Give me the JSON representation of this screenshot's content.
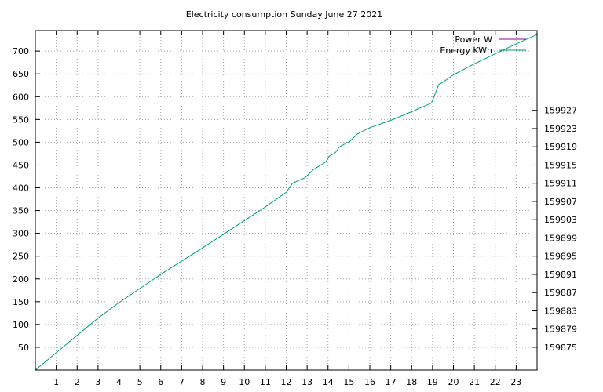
{
  "chart_data": {
    "type": "line",
    "title": "Electricity consumption Sunday June 27 2021",
    "xlabel": "",
    "ylabel": "",
    "x_ticks": [
      "1",
      "2",
      "3",
      "4",
      "5",
      "6",
      "7",
      "8",
      "9",
      "10",
      "11",
      "12",
      "13",
      "14",
      "15",
      "16",
      "17",
      "18",
      "19",
      "20",
      "21",
      "22",
      "23"
    ],
    "xlim": [
      0,
      24
    ],
    "y_ticks": [
      "50",
      "100",
      "150",
      "200",
      "250",
      "300",
      "350",
      "400",
      "450",
      "500",
      "550",
      "600",
      "650",
      "700"
    ],
    "ylim": [
      0,
      745
    ],
    "y2_ticks": [
      "159875",
      "159879",
      "159883",
      "159887",
      "159891",
      "159895",
      "159899",
      "159903",
      "159907",
      "159911",
      "159915",
      "159919",
      "159923",
      "159927"
    ],
    "y2lim": [
      159870,
      159944.5
    ],
    "grid": true,
    "legend_position": "top-right",
    "colors": {
      "power": "#94008f",
      "energy": "#009e73"
    },
    "series": [
      {
        "name": "Power W",
        "axis": "y",
        "color": "#94008f",
        "x": [],
        "values": []
      },
      {
        "name": "Energy KWh",
        "axis": "y",
        "color": "#009e73",
        "x": [
          0,
          1,
          2,
          3,
          4,
          5,
          6,
          7,
          8,
          9,
          10,
          11,
          12,
          12.3,
          12.9,
          13.3,
          13.9,
          14.05,
          14.35,
          14.55,
          15.05,
          15.4,
          16,
          17,
          18,
          18.95,
          19.3,
          19.5,
          20,
          21,
          22,
          23,
          24
        ],
        "values": [
          0,
          38,
          76,
          114,
          148,
          179,
          210,
          239,
          268,
          298,
          328,
          358,
          390,
          410,
          422,
          440,
          457,
          469,
          477,
          490,
          502,
          518,
          532,
          548,
          567,
          586,
          627,
          632,
          648,
          672,
          694,
          716,
          736
        ]
      }
    ]
  }
}
